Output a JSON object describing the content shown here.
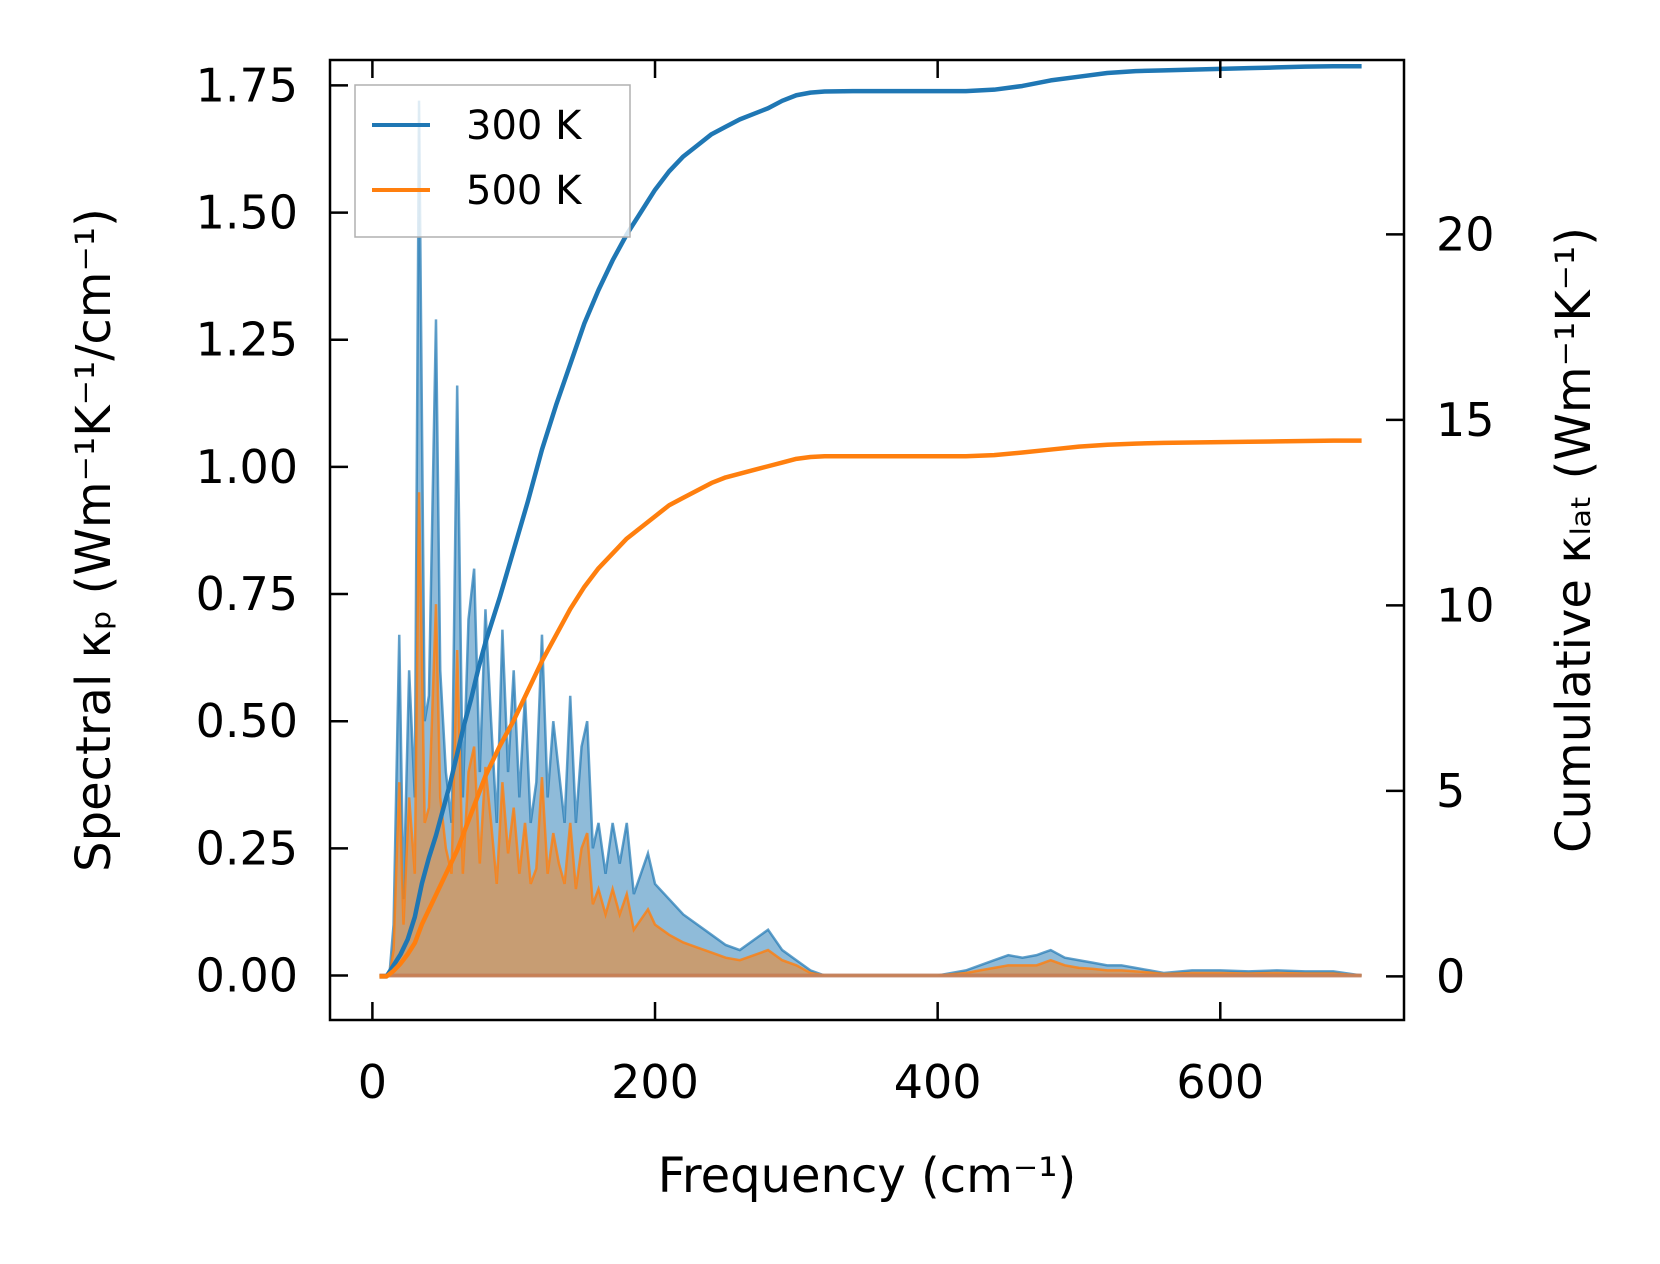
{
  "chart_data": {
    "type": "area+line (dual axis)",
    "xlabel": "Frequency (cm⁻¹)",
    "ylabel_left": "Spectral κₚ (Wm⁻¹K⁻¹/cm⁻¹)",
    "ylabel_right": "Cumulative κₗₐₜ (Wm⁻¹K⁻¹)",
    "xlim": [
      -30,
      730
    ],
    "ylim_left": [
      -0.0875,
      1.8
    ],
    "ylim_right": [
      -1.175,
      24.7
    ],
    "x_ticks": [
      "0",
      "200",
      "400",
      "600"
    ],
    "x_tick_values": [
      0,
      200,
      400,
      600
    ],
    "left_ticks": [
      "0.00",
      "0.25",
      "0.50",
      "0.75",
      "1.00",
      "1.25",
      "1.50",
      "1.75"
    ],
    "left_tick_values": [
      0,
      0.25,
      0.5,
      0.75,
      1.0,
      1.25,
      1.5,
      1.75
    ],
    "right_ticks": [
      "0",
      "5",
      "10",
      "15",
      "20"
    ],
    "right_tick_values": [
      0,
      5,
      10,
      15,
      20
    ],
    "legend": [
      "300 K",
      "500 K"
    ],
    "legend_position": "top-left",
    "colors": {
      "series_300K": "#1f77b4",
      "series_500K": "#ff7f0e",
      "overlap_fill": "#c49a6c"
    },
    "spectral": {
      "x": [
        5,
        12,
        15,
        19,
        22,
        26,
        30,
        33,
        37,
        40,
        45,
        48,
        52,
        56,
        60,
        64,
        68,
        72,
        76,
        80,
        84,
        88,
        92,
        96,
        100,
        104,
        108,
        112,
        116,
        120,
        124,
        128,
        132,
        136,
        140,
        144,
        148,
        152,
        156,
        160,
        165,
        170,
        175,
        180,
        185,
        190,
        195,
        200,
        210,
        220,
        230,
        240,
        250,
        260,
        270,
        280,
        290,
        300,
        310,
        320,
        330,
        350,
        400,
        420,
        430,
        440,
        450,
        460,
        470,
        475,
        480,
        490,
        500,
        510,
        520,
        530,
        540,
        550,
        560,
        580,
        600,
        620,
        640,
        660,
        680,
        700
      ],
      "series": [
        {
          "name": "300 K",
          "values": [
            0,
            0,
            0.1,
            0.67,
            0.15,
            0.6,
            0.35,
            1.72,
            0.5,
            0.55,
            1.29,
            0.6,
            0.4,
            0.3,
            1.16,
            0.35,
            0.7,
            0.8,
            0.4,
            0.72,
            0.5,
            0.3,
            0.68,
            0.4,
            0.6,
            0.35,
            0.55,
            0.3,
            0.38,
            0.67,
            0.35,
            0.5,
            0.4,
            0.3,
            0.55,
            0.3,
            0.45,
            0.5,
            0.25,
            0.3,
            0.2,
            0.3,
            0.22,
            0.3,
            0.16,
            0.2,
            0.24,
            0.18,
            0.15,
            0.12,
            0.1,
            0.08,
            0.06,
            0.05,
            0.07,
            0.09,
            0.05,
            0.03,
            0.01,
            0.0,
            0.0,
            0.0,
            0.0,
            0.01,
            0.02,
            0.03,
            0.04,
            0.035,
            0.04,
            0.045,
            0.05,
            0.035,
            0.03,
            0.025,
            0.02,
            0.02,
            0.015,
            0.01,
            0.005,
            0.01,
            0.01,
            0.008,
            0.01,
            0.008,
            0.008,
            0.0
          ]
        },
        {
          "name": "500 K",
          "values": [
            0,
            0,
            0.05,
            0.38,
            0.1,
            0.35,
            0.2,
            0.95,
            0.3,
            0.33,
            0.73,
            0.35,
            0.25,
            0.2,
            0.64,
            0.2,
            0.4,
            0.45,
            0.22,
            0.41,
            0.3,
            0.18,
            0.38,
            0.24,
            0.33,
            0.2,
            0.3,
            0.18,
            0.21,
            0.39,
            0.2,
            0.28,
            0.22,
            0.18,
            0.3,
            0.17,
            0.25,
            0.28,
            0.14,
            0.17,
            0.12,
            0.17,
            0.12,
            0.16,
            0.09,
            0.11,
            0.13,
            0.1,
            0.08,
            0.065,
            0.055,
            0.045,
            0.035,
            0.03,
            0.04,
            0.05,
            0.03,
            0.02,
            0.005,
            0.0,
            0.0,
            0.0,
            0.0,
            0.005,
            0.01,
            0.015,
            0.02,
            0.02,
            0.02,
            0.025,
            0.03,
            0.02,
            0.015,
            0.013,
            0.01,
            0.01,
            0.008,
            0.006,
            0.003,
            0.005,
            0.005,
            0.004,
            0.005,
            0.004,
            0.004,
            0.0
          ]
        }
      ]
    },
    "cumulative": {
      "x": [
        5,
        10,
        15,
        20,
        25,
        30,
        35,
        40,
        45,
        50,
        55,
        60,
        65,
        70,
        75,
        80,
        90,
        100,
        110,
        120,
        130,
        140,
        150,
        160,
        170,
        180,
        190,
        200,
        210,
        220,
        230,
        240,
        250,
        260,
        270,
        280,
        290,
        300,
        310,
        320,
        340,
        360,
        380,
        400,
        420,
        440,
        460,
        480,
        500,
        520,
        540,
        560,
        580,
        600,
        620,
        640,
        660,
        680,
        700
      ],
      "series": [
        {
          "name": "300 K",
          "values": [
            0,
            0,
            0.3,
            0.6,
            1.0,
            1.6,
            2.5,
            3.2,
            3.8,
            4.5,
            5.2,
            6.0,
            6.8,
            7.5,
            8.3,
            9.0,
            10.2,
            11.5,
            12.8,
            14.2,
            15.4,
            16.5,
            17.6,
            18.5,
            19.3,
            20.0,
            20.6,
            21.2,
            21.7,
            22.1,
            22.4,
            22.7,
            22.9,
            23.1,
            23.25,
            23.4,
            23.6,
            23.75,
            23.82,
            23.85,
            23.86,
            23.86,
            23.86,
            23.86,
            23.86,
            23.9,
            24.0,
            24.15,
            24.25,
            24.35,
            24.4,
            24.42,
            24.44,
            24.46,
            24.48,
            24.5,
            24.52,
            24.53,
            24.53
          ]
        },
        {
          "name": "500 K",
          "values": [
            0,
            0,
            0.15,
            0.35,
            0.6,
            0.9,
            1.4,
            1.8,
            2.2,
            2.6,
            3.0,
            3.4,
            3.9,
            4.4,
            4.9,
            5.4,
            6.2,
            6.9,
            7.7,
            8.5,
            9.2,
            9.9,
            10.5,
            11.0,
            11.4,
            11.8,
            12.1,
            12.4,
            12.7,
            12.9,
            13.1,
            13.3,
            13.45,
            13.55,
            13.65,
            13.75,
            13.85,
            13.95,
            14.0,
            14.02,
            14.02,
            14.02,
            14.02,
            14.02,
            14.02,
            14.05,
            14.12,
            14.2,
            14.28,
            14.33,
            14.36,
            14.38,
            14.39,
            14.4,
            14.41,
            14.42,
            14.43,
            14.44,
            14.44
          ]
        }
      ]
    }
  }
}
